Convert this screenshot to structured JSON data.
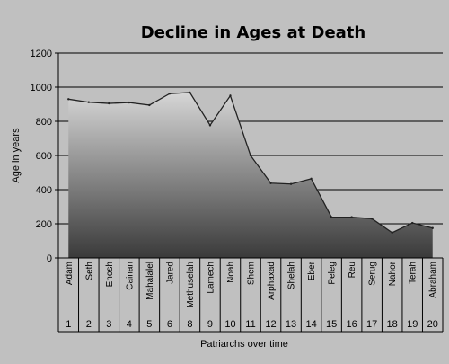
{
  "chart_data": {
    "type": "area",
    "title": "Decline in Ages at Death",
    "xlabel": "Patriarchs over time",
    "ylabel": "Age in years",
    "ylim": [
      0,
      1200
    ],
    "yticks": [
      0,
      200,
      400,
      600,
      800,
      1000,
      1200
    ],
    "grid": true,
    "legend": "none",
    "colors": {
      "background": "#c0c0c0",
      "plot_area": "#c0c0c0",
      "fill_top": "#d6d6d6",
      "fill_bottom": "#3a3a3a",
      "gridline": "#000000"
    },
    "categories": [
      "Adam",
      "Seth",
      "Enosh",
      "Cainan",
      "Mahalalel",
      "Jared",
      "Methuselah",
      "Lamech",
      "Noah",
      "Shem",
      "Arphaxad",
      "Shelah",
      "Eber",
      "Peleg",
      "Reu",
      "Serug",
      "Nahor",
      "Terah",
      "Abraham"
    ],
    "numbers": [
      "1",
      "2",
      "3",
      "4",
      "5",
      "6",
      "8",
      "9",
      "10",
      "11",
      "12",
      "13",
      "14",
      "15",
      "16",
      "17",
      "18",
      "19",
      "20"
    ],
    "series": [
      {
        "values": [
          930,
          912,
          905,
          910,
          895,
          962,
          969,
          777,
          950,
          600,
          438,
          433,
          464,
          239,
          239,
          230,
          148,
          205,
          175
        ]
      }
    ]
  }
}
